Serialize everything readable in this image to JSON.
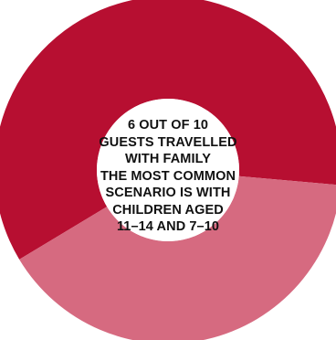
{
  "colors": {
    "family": "#b70f31",
    "other": "#d66a80",
    "background": "#ffffff"
  },
  "center_lines": [
    "6 OUT OF 10",
    "GUESTS TRAVELLED",
    "WITH FAMILY",
    "THE MOST COMMON",
    "SCENARIO IS WITH",
    "CHILDREN AGED",
    "11–14 AND 7–10"
  ],
  "chart_data": {
    "type": "pie",
    "style": "donut",
    "slices": [
      {
        "value": 6,
        "color": "#b70f31"
      },
      {
        "value": 4,
        "color": "#d66a80"
      }
    ],
    "total": 10,
    "legend": false,
    "grid": false
  }
}
